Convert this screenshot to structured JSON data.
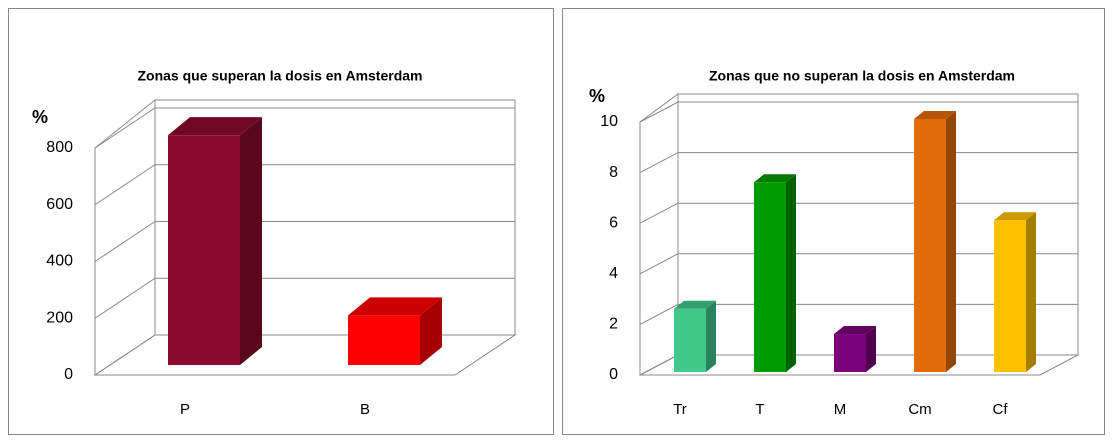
{
  "chart_data": [
    {
      "type": "bar3d",
      "title": "Zonas que superan la dosis en Amsterdam",
      "y_label": "%",
      "categories": [
        "P",
        "B"
      ],
      "values": [
        810,
        175
      ],
      "colors": [
        "#8b0a2e",
        "#ff0000"
      ],
      "ylim": [
        0,
        800
      ],
      "yticks": [
        0,
        200,
        400,
        600,
        800
      ],
      "grid": true
    },
    {
      "type": "bar3d",
      "title": "Zonas que no superan la dosis en Amsterdam",
      "y_label": "%",
      "categories": [
        "Tr",
        "T",
        "M",
        "Cm",
        "Cf"
      ],
      "values": [
        2.5,
        7.5,
        1.5,
        10,
        6
      ],
      "colors": [
        "#40c98a",
        "#009900",
        "#7b007b",
        "#e36c0a",
        "#ffc000"
      ],
      "ylim": [
        0,
        10
      ],
      "yticks": [
        0,
        2,
        4,
        6,
        8,
        10
      ],
      "grid": true
    }
  ]
}
